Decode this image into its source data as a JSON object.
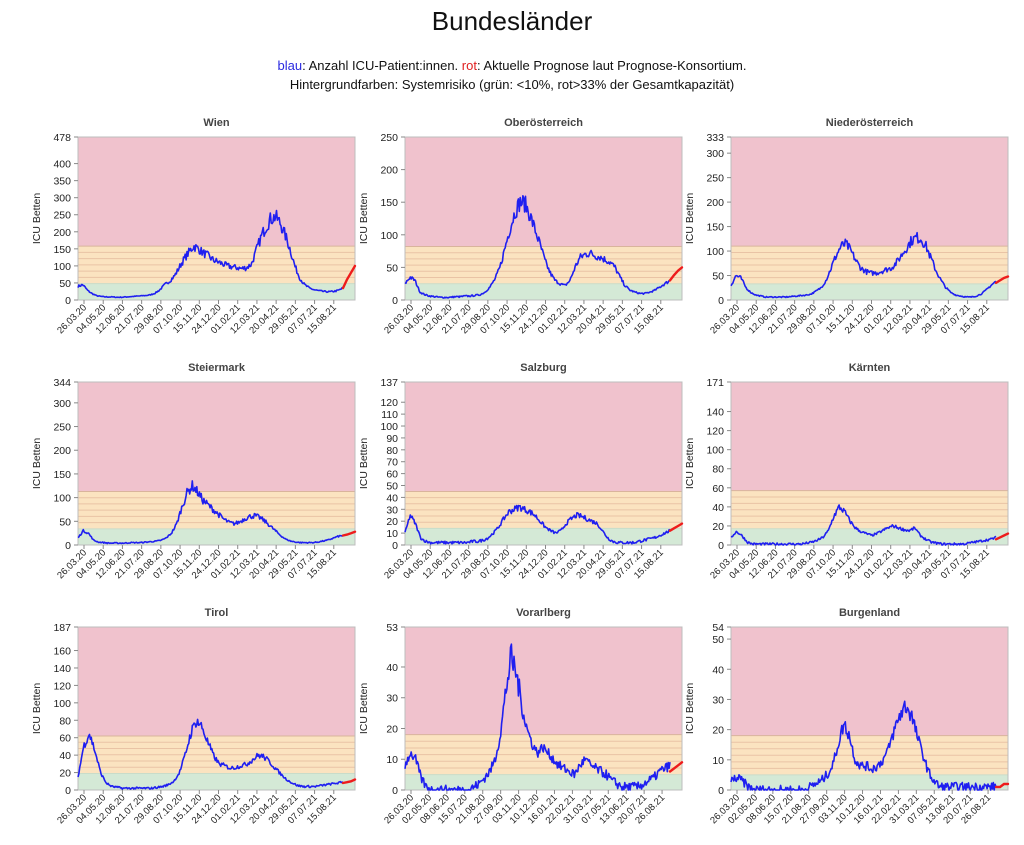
{
  "page": {
    "title": "Bundesländer",
    "legend": {
      "blue_word": "blau",
      "line1_part1": ": Anzahl ICU-Patient:innen. ",
      "red_word": "rot",
      "line1_part2": ": Aktuelle Prognose laut Prognose-Konsortium.",
      "line2": "Hintergrundfarben: Systemrisiko (grün: <10%, rot>33% der Gesamtkapazität)"
    }
  },
  "colors": {
    "actual": "#1f1ff0",
    "forecast": "#ee1c1c",
    "zone_green": "#d4e9d6",
    "zone_orange": "#fbe3c0",
    "zone_red": "#f0c2cd",
    "orange_stripe": "#e9c3a5"
  },
  "chart_data": [
    {
      "type": "line",
      "title": "Wien",
      "ylabel": "ICU Betten",
      "ylim": [
        0,
        478
      ],
      "yticks": [
        0,
        50,
        100,
        150,
        200,
        250,
        300,
        350,
        400,
        478
      ],
      "xticks": [
        "26.03.20",
        "04.05.20",
        "12.06.20",
        "21.07.20",
        "29.08.20",
        "07.10.20",
        "15.11.20",
        "24.12.20",
        "01.02.21",
        "12.03.21",
        "20.04.21",
        "29.05.21",
        "07.07.21",
        "15.08.21"
      ],
      "zones": {
        "green_max": 48,
        "orange_max": 158
      },
      "series": [
        {
          "role": "actual",
          "values": [
            40,
            45,
            28,
            18,
            12,
            10,
            9,
            9,
            8,
            8,
            9,
            10,
            11,
            12,
            13,
            15,
            20,
            30,
            45,
            55,
            70,
            95,
            120,
            140,
            158,
            150,
            138,
            130,
            118,
            112,
            106,
            100,
            97,
            95,
            92,
            95,
            105,
            145,
            185,
            215,
            238,
            245,
            225,
            190,
            150,
            100,
            65,
            45,
            35,
            30,
            27,
            25,
            24,
            25,
            28,
            35
          ]
        },
        {
          "role": "forecast",
          "values": [
            35,
            60,
            80,
            100
          ]
        }
      ]
    },
    {
      "type": "line",
      "title": "Oberösterreich",
      "ylabel": "ICU Betten",
      "ylim": [
        0,
        250
      ],
      "yticks": [
        0,
        50,
        100,
        150,
        200,
        250
      ],
      "xticks": [
        "26.03.20",
        "04.05.20",
        "12.06.20",
        "21.07.20",
        "29.08.20",
        "07.10.20",
        "15.11.20",
        "24.12.20",
        "01.02.21",
        "12.03.21",
        "20.04.21",
        "29.05.21",
        "07.07.21",
        "15.08.21"
      ],
      "zones": {
        "green_max": 25,
        "orange_max": 82
      },
      "series": [
        {
          "role": "actual",
          "values": [
            25,
            35,
            30,
            12,
            8,
            6,
            5,
            4,
            4,
            4,
            5,
            5,
            6,
            6,
            7,
            8,
            12,
            20,
            32,
            50,
            80,
            110,
            135,
            150,
            148,
            130,
            108,
            85,
            60,
            42,
            30,
            25,
            22,
            30,
            50,
            65,
            70,
            72,
            68,
            66,
            62,
            58,
            50,
            35,
            22,
            15,
            12,
            10,
            10,
            12,
            15,
            20,
            25,
            30
          ]
        },
        {
          "role": "forecast",
          "values": [
            30,
            38,
            45,
            50
          ]
        }
      ]
    },
    {
      "type": "line",
      "title": "Niederösterreich",
      "ylabel": "ICU Betten",
      "ylim": [
        0,
        333
      ],
      "yticks": [
        0,
        50,
        100,
        150,
        200,
        250,
        300,
        333
      ],
      "xticks": [
        "26.03.20",
        "04.05.20",
        "12.06.20",
        "21.07.20",
        "29.08.20",
        "07.10.20",
        "15.11.20",
        "24.12.20",
        "01.02.21",
        "12.03.21",
        "20.04.21",
        "29.05.21",
        "07.07.21",
        "15.08.21"
      ],
      "zones": {
        "green_max": 33,
        "orange_max": 110
      },
      "series": [
        {
          "role": "actual",
          "values": [
            30,
            50,
            45,
            25,
            15,
            10,
            8,
            6,
            6,
            6,
            6,
            6,
            7,
            8,
            9,
            10,
            12,
            18,
            25,
            40,
            65,
            90,
            110,
            115,
            100,
            80,
            65,
            58,
            55,
            55,
            58,
            62,
            65,
            75,
            90,
            105,
            120,
            128,
            125,
            110,
            85,
            60,
            40,
            25,
            15,
            10,
            8,
            6,
            6,
            8,
            12,
            20,
            30,
            38
          ]
        },
        {
          "role": "forecast",
          "values": [
            35,
            40,
            45,
            48
          ]
        }
      ]
    },
    {
      "type": "line",
      "title": "Steiermark",
      "ylabel": "ICU Betten",
      "ylim": [
        0,
        344
      ],
      "yticks": [
        0,
        50,
        100,
        150,
        200,
        250,
        300,
        344
      ],
      "xticks": [
        "26.03.20",
        "04.05.20",
        "12.06.20",
        "21.07.20",
        "29.08.20",
        "07.10.20",
        "15.11.20",
        "24.12.20",
        "01.02.21",
        "12.03.21",
        "20.04.21",
        "29.05.21",
        "07.07.21",
        "15.08.21"
      ],
      "zones": {
        "green_max": 34,
        "orange_max": 113
      },
      "series": [
        {
          "role": "actual",
          "values": [
            15,
            30,
            25,
            10,
            6,
            5,
            4,
            4,
            4,
            4,
            5,
            5,
            5,
            6,
            7,
            8,
            10,
            15,
            25,
            45,
            80,
            110,
            125,
            112,
            95,
            85,
            75,
            65,
            55,
            48,
            45,
            48,
            55,
            60,
            62,
            58,
            50,
            40,
            30,
            20,
            12,
            8,
            6,
            5,
            5,
            5,
            6,
            8,
            10,
            14,
            18,
            20
          ]
        },
        {
          "role": "forecast",
          "values": [
            20,
            22,
            25,
            28
          ]
        }
      ]
    },
    {
      "type": "line",
      "title": "Salzburg",
      "ylabel": "ICU Betten",
      "ylim": [
        0,
        137
      ],
      "yticks": [
        0,
        10,
        20,
        30,
        40,
        50,
        60,
        70,
        80,
        90,
        100,
        110,
        120,
        137
      ],
      "xticks": [
        "26.03.20",
        "04.05.20",
        "12.06.20",
        "21.07.20",
        "29.08.20",
        "07.10.20",
        "15.11.20",
        "24.12.20",
        "01.02.21",
        "12.03.21",
        "20.04.21",
        "29.05.21",
        "07.07.21",
        "15.08.21"
      ],
      "zones": {
        "green_max": 14,
        "orange_max": 45
      },
      "series": [
        {
          "role": "actual",
          "values": [
            10,
            25,
            18,
            6,
            3,
            2,
            2,
            2,
            2,
            2,
            2,
            2,
            2,
            3,
            3,
            4,
            6,
            10,
            15,
            22,
            28,
            30,
            32,
            30,
            28,
            25,
            20,
            15,
            12,
            10,
            12,
            18,
            22,
            25,
            24,
            22,
            20,
            18,
            12,
            6,
            3,
            2,
            2,
            2,
            2,
            3,
            4,
            5,
            6,
            8,
            10,
            12
          ]
        },
        {
          "role": "forecast",
          "values": [
            12,
            14,
            16,
            18
          ]
        }
      ]
    },
    {
      "type": "line",
      "title": "Kärnten",
      "ylabel": "ICU Betten",
      "ylim": [
        0,
        171
      ],
      "yticks": [
        0,
        20,
        40,
        60,
        80,
        100,
        120,
        140,
        171
      ],
      "xticks": [
        "26.03.20",
        "04.05.20",
        "12.06.20",
        "21.07.20",
        "29.08.20",
        "07.10.20",
        "15.11.20",
        "24.12.20",
        "01.02.21",
        "12.03.21",
        "20.04.21",
        "29.05.21",
        "07.07.21",
        "15.08.21"
      ],
      "zones": {
        "green_max": 17,
        "orange_max": 57
      },
      "series": [
        {
          "role": "actual",
          "values": [
            8,
            14,
            10,
            3,
            1,
            1,
            1,
            1,
            1,
            1,
            1,
            1,
            1,
            1,
            2,
            3,
            5,
            8,
            15,
            30,
            40,
            35,
            25,
            18,
            14,
            12,
            10,
            12,
            15,
            18,
            20,
            18,
            16,
            15,
            18,
            10,
            6,
            3,
            2,
            1,
            1,
            1,
            1,
            1,
            2,
            3,
            4,
            5,
            6,
            8
          ]
        },
        {
          "role": "forecast",
          "values": [
            6,
            8,
            10,
            12
          ]
        }
      ]
    },
    {
      "type": "line",
      "title": "Tirol",
      "ylabel": "ICU Betten",
      "ylim": [
        0,
        187
      ],
      "yticks": [
        0,
        20,
        40,
        60,
        80,
        100,
        120,
        140,
        160,
        187
      ],
      "xticks": [
        "26.03.20",
        "04.05.20",
        "12.06.20",
        "21.07.20",
        "29.08.20",
        "07.10.20",
        "15.11.20",
        "24.12.20",
        "01.02.21",
        "12.03.21",
        "20.04.21",
        "29.05.21",
        "07.07.21",
        "15.08.21"
      ],
      "zones": {
        "green_max": 19,
        "orange_max": 62
      },
      "series": [
        {
          "role": "actual",
          "values": [
            15,
            50,
            65,
            45,
            20,
            8,
            4,
            3,
            2,
            2,
            2,
            2,
            2,
            2,
            3,
            4,
            6,
            10,
            20,
            40,
            65,
            80,
            72,
            55,
            40,
            30,
            28,
            25,
            26,
            28,
            30,
            35,
            40,
            38,
            32,
            25,
            18,
            12,
            8,
            5,
            4,
            4,
            4,
            5,
            6,
            7,
            8,
            9
          ]
        },
        {
          "role": "forecast",
          "values": [
            8,
            9,
            10,
            12
          ]
        }
      ]
    },
    {
      "type": "line",
      "title": "Vorarlberg",
      "ylabel": "ICU Betten",
      "ylim": [
        0,
        53
      ],
      "yticks": [
        0,
        10,
        20,
        30,
        40,
        53
      ],
      "xticks": [
        "26.03.20",
        "02.05.20",
        "08.06.20",
        "15.07.20",
        "21.08.20",
        "27.09.20",
        "03.11.20",
        "10.12.20",
        "16.01.21",
        "22.02.21",
        "31.03.21",
        "07.05.21",
        "13.06.21",
        "20.07.21",
        "26.08.21"
      ],
      "zones": {
        "green_max": 5,
        "orange_max": 18
      },
      "series": [
        {
          "role": "actual",
          "values": [
            8,
            12,
            10,
            4,
            1,
            0,
            0,
            0,
            0,
            0,
            0,
            0,
            0,
            1,
            2,
            4,
            6,
            10,
            18,
            32,
            43,
            38,
            28,
            20,
            15,
            12,
            14,
            12,
            10,
            8,
            7,
            6,
            5,
            8,
            10,
            8,
            7,
            6,
            5,
            3,
            2,
            1,
            1,
            1,
            1,
            2,
            3,
            4,
            6,
            7,
            8
          ]
        },
        {
          "role": "forecast",
          "values": [
            6,
            7,
            8,
            9
          ]
        }
      ]
    },
    {
      "type": "line",
      "title": "Burgenland",
      "ylabel": "ICU Betten",
      "ylim": [
        0,
        54
      ],
      "yticks": [
        0,
        10,
        20,
        30,
        40,
        50,
        54
      ],
      "xticks": [
        "26.03.20",
        "02.05.20",
        "08.06.20",
        "15.07.20",
        "21.08.20",
        "27.09.20",
        "03.11.20",
        "10.12.20",
        "16.01.21",
        "22.02.21",
        "31.03.21",
        "07.05.21",
        "13.06.21",
        "20.07.21",
        "26.08.21"
      ],
      "zones": {
        "green_max": 5,
        "orange_max": 18
      },
      "series": [
        {
          "role": "actual",
          "values": [
            3,
            4,
            3,
            1,
            0,
            0,
            0,
            0,
            0,
            0,
            0,
            0,
            0,
            0,
            1,
            2,
            3,
            5,
            8,
            15,
            22,
            18,
            10,
            8,
            8,
            7,
            8,
            10,
            14,
            20,
            25,
            28,
            25,
            18,
            12,
            6,
            3,
            1,
            1,
            1,
            1,
            1,
            1,
            1,
            1,
            1,
            1,
            1
          ]
        },
        {
          "role": "forecast",
          "values": [
            1,
            1,
            2,
            2
          ]
        }
      ]
    }
  ]
}
